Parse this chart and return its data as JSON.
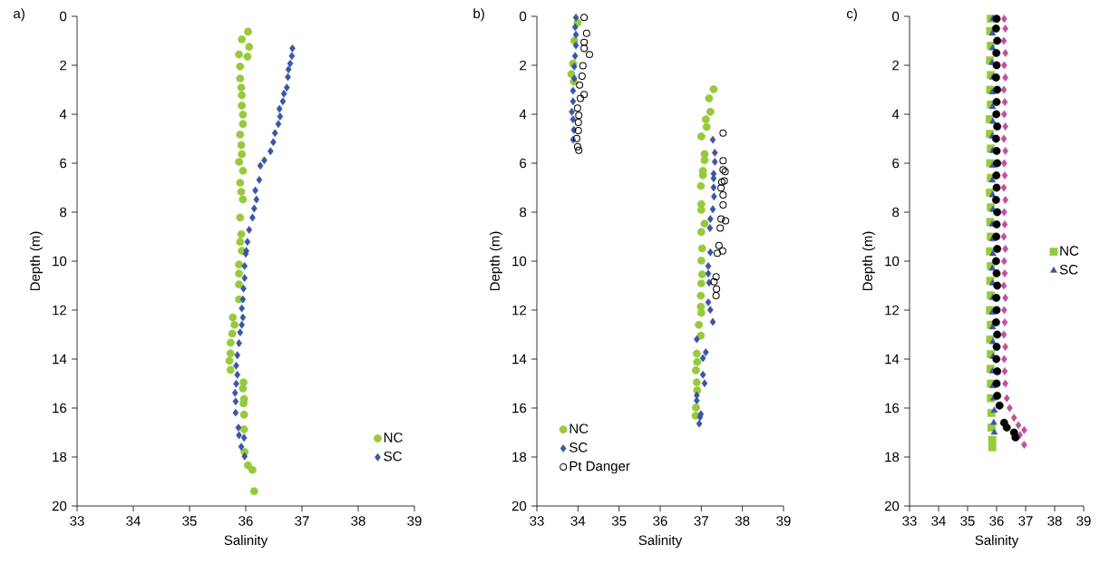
{
  "chart_data": [
    {
      "type": "scatter",
      "title": "a)",
      "xlabel": "Salinity",
      "ylabel": "Depth (m)",
      "xlim": [
        33,
        39
      ],
      "ylim": [
        20,
        0
      ],
      "xticks": [
        33,
        34,
        35,
        36,
        37,
        38,
        39
      ],
      "yticks": [
        0,
        2,
        4,
        6,
        8,
        10,
        12,
        14,
        16,
        18,
        20
      ],
      "legend": "bottom right",
      "grid": false,
      "series": [
        {
          "name": "NC",
          "color": "#97c93d",
          "marker": "circle",
          "x": [
            36.04,
            35.93,
            36.06,
            35.88,
            36.03,
            35.9,
            35.9,
            35.92,
            35.93,
            35.93,
            35.95,
            35.95,
            35.9,
            35.92,
            35.93,
            35.88,
            35.95,
            35.9,
            35.92,
            35.95,
            35.9,
            35.92,
            35.9,
            35.93,
            35.88,
            35.88,
            35.88,
            35.88,
            35.77,
            35.8,
            35.76,
            35.73,
            35.73,
            35.71,
            35.73,
            35.96,
            35.95,
            35.97,
            35.96,
            35.97,
            35.97,
            35.98,
            36.04,
            36.12,
            36.15
          ],
          "values": [
            0.63,
            0.94,
            1.25,
            1.56,
            1.65,
            2.05,
            2.54,
            2.91,
            3.22,
            3.65,
            4.02,
            4.4,
            4.83,
            5.26,
            5.63,
            5.94,
            6.31,
            6.8,
            7.17,
            7.48,
            8.22,
            8.9,
            9.21,
            9.58,
            10.14,
            10.51,
            10.95,
            11.56,
            12.3,
            12.6,
            12.96,
            13.33,
            13.77,
            14.07,
            14.44,
            14.95,
            15.2,
            15.63,
            15.81,
            16.27,
            16.87,
            17.79,
            18.34,
            18.53,
            19.4
          ]
        },
        {
          "name": "SC",
          "color": "#3c55a5",
          "marker": "diamond",
          "x": [
            36.83,
            36.82,
            36.79,
            36.76,
            36.75,
            36.73,
            36.68,
            36.66,
            36.6,
            36.61,
            36.58,
            36.52,
            36.49,
            36.44,
            36.33,
            36.26,
            36.24,
            36.17,
            36.19,
            36.15,
            36.12,
            36.06,
            36.03,
            36.01,
            36.0,
            35.98,
            35.98,
            35.96,
            35.95,
            35.93,
            35.95,
            35.93,
            35.9,
            35.88,
            35.85,
            35.83,
            35.85,
            35.83,
            35.81,
            35.82,
            35.82,
            35.87,
            35.88,
            35.97,
            35.92,
            35.98
          ],
          "values": [
            1.31,
            1.62,
            1.93,
            2.17,
            2.48,
            2.91,
            3.16,
            3.47,
            3.78,
            4.09,
            4.4,
            4.77,
            5.14,
            5.51,
            5.88,
            6.1,
            6.68,
            7.11,
            7.48,
            7.85,
            8.22,
            8.72,
            9.21,
            9.58,
            9.7,
            10.2,
            10.69,
            11.12,
            11.56,
            11.93,
            12.3,
            12.6,
            12.91,
            13.35,
            13.84,
            14.27,
            14.64,
            15.01,
            15.38,
            15.73,
            16.19,
            16.8,
            17.11,
            17.21,
            17.58,
            17.97
          ]
        }
      ]
    },
    {
      "type": "scatter",
      "title": "b)",
      "xlabel": "Salinity",
      "ylabel": "Depth (m)",
      "xlim": [
        33,
        39
      ],
      "ylim": [
        20,
        0
      ],
      "xticks": [
        33,
        34,
        35,
        36,
        37,
        38,
        39
      ],
      "yticks": [
        0,
        2,
        4,
        6,
        8,
        10,
        12,
        14,
        16,
        18,
        20
      ],
      "legend": "bottom left",
      "grid": false,
      "series": [
        {
          "name": "NC",
          "color": "#97c93d",
          "marker": "circle",
          "x": [
            33.99,
            33.91,
            33.88,
            33.84,
            33.9,
            37.3,
            37.19,
            37.22,
            37.11,
            37.13,
            37.0,
            37.08,
            37.08,
            37.04,
            37.04,
            36.99,
            37.0,
            37.0,
            37.08,
            37.0,
            37.02,
            37.0,
            37.02,
            37.0,
            36.99,
            36.99,
            37.0,
            36.94,
            36.99,
            36.89,
            36.9,
            36.87,
            36.89,
            36.9,
            36.87,
            36.86
          ],
          "values": [
            0.26,
            1.0,
            1.93,
            2.36,
            2.67,
            2.98,
            3.35,
            3.9,
            4.21,
            4.52,
            4.91,
            5.63,
            5.88,
            6.31,
            6.49,
            6.93,
            7.67,
            7.91,
            8.47,
            8.81,
            9.48,
            9.98,
            10.54,
            10.91,
            11.41,
            11.86,
            12.11,
            12.6,
            13.04,
            13.78,
            14.12,
            14.46,
            14.95,
            15.28,
            15.98,
            16.31
          ]
        },
        {
          "name": "SC",
          "color": "#3c55a5",
          "marker": "diamond",
          "x": [
            33.95,
            33.93,
            33.95,
            33.95,
            33.93,
            33.91,
            33.91,
            33.88,
            33.88,
            33.85,
            33.88,
            33.9,
            33.88,
            37.28,
            37.33,
            37.33,
            37.3,
            37.3,
            37.3,
            37.31,
            37.28,
            37.22,
            37.21,
            37.22,
            37.17,
            37.17,
            37.19,
            37.17,
            37.22,
            37.28,
            36.89,
            37.11,
            37.04,
            37.04,
            37.08,
            36.89,
            36.89,
            36.99,
            36.97,
            36.95
          ],
          "values": [
            0.05,
            0.44,
            0.75,
            1.19,
            1.62,
            2.05,
            2.54,
            3.04,
            3.47,
            3.9,
            4.21,
            4.64,
            5.04,
            5.04,
            5.57,
            5.94,
            6.43,
            6.62,
            6.99,
            7.36,
            7.88,
            8.28,
            8.65,
            9.64,
            10.2,
            10.51,
            10.88,
            11.68,
            11.99,
            12.48,
            13.19,
            13.72,
            13.96,
            14.64,
            14.99,
            15.48,
            15.69,
            16.25,
            16.37,
            16.64
          ]
        },
        {
          "name": "Pt Danger",
          "color": "#000000",
          "marker": "open circle",
          "x": [
            34.15,
            34.21,
            34.15,
            34.15,
            34.28,
            34.12,
            34.1,
            34.04,
            34.15,
            34.06,
            33.99,
            34.02,
            34.01,
            34.01,
            33.97,
            33.99,
            34.02,
            37.53,
            37.53,
            37.53,
            37.58,
            37.56,
            37.5,
            37.48,
            37.53,
            37.53,
            37.48,
            37.59,
            37.46,
            37.43,
            37.52,
            37.39,
            37.36,
            37.31,
            37.37,
            37.36
          ],
          "values": [
            0.05,
            0.69,
            1.06,
            1.31,
            1.56,
            2.02,
            2.44,
            2.81,
            3.19,
            3.35,
            3.75,
            4.05,
            4.33,
            4.67,
            4.99,
            5.32,
            5.47,
            4.77,
            5.9,
            6.27,
            6.34,
            6.72,
            6.77,
            7.01,
            7.3,
            7.7,
            8.28,
            8.35,
            8.65,
            9.36,
            9.58,
            9.68,
            10.64,
            10.84,
            11.14,
            11.41
          ]
        }
      ]
    },
    {
      "type": "scatter",
      "title": "c)",
      "xlabel": "Salinity",
      "ylabel": "Depth (m)",
      "xlim": [
        33,
        39
      ],
      "ylim": [
        20,
        0
      ],
      "xticks": [
        33,
        34,
        35,
        36,
        37,
        38,
        39
      ],
      "yticks": [
        0,
        2,
        4,
        6,
        8,
        10,
        12,
        14,
        16,
        18,
        20
      ],
      "legend": "right",
      "grid": false,
      "series": [
        {
          "name": "NC",
          "color": "#97c93d",
          "marker": "square",
          "x": [
            35.8,
            35.78,
            35.8,
            35.77,
            35.8,
            35.78,
            35.8,
            35.76,
            35.77,
            35.8,
            35.78,
            35.8,
            35.77,
            35.8,
            35.78,
            35.8,
            35.77,
            35.8,
            35.78,
            35.8,
            35.77,
            35.8,
            35.78,
            35.8,
            35.79,
            35.8,
            35.8,
            35.82,
            35.82,
            35.85,
            35.85
          ],
          "values": [
            0.1,
            0.6,
            1.2,
            1.8,
            2.4,
            3.0,
            3.6,
            4.2,
            4.8,
            5.4,
            6.0,
            6.6,
            7.2,
            7.8,
            8.4,
            9.0,
            9.6,
            10.2,
            10.8,
            11.4,
            12.0,
            12.6,
            13.2,
            13.8,
            14.4,
            15.0,
            15.6,
            16.2,
            16.8,
            17.3,
            17.6
          ]
        },
        {
          "name": "SC",
          "color": "#3c55a5",
          "marker": "triangle",
          "x": [
            35.87,
            35.85,
            35.86,
            35.84,
            35.87,
            35.85,
            35.86,
            35.87,
            35.85,
            35.86,
            35.87,
            35.85,
            35.86,
            35.87,
            35.85,
            35.86,
            35.87,
            35.85,
            35.86,
            35.87,
            35.85,
            35.86,
            35.87,
            35.88,
            35.86,
            35.87,
            35.9,
            35.92,
            35.9,
            35.92
          ],
          "values": [
            0.1,
            0.7,
            1.3,
            1.9,
            2.5,
            3.1,
            3.7,
            4.3,
            4.9,
            5.5,
            6.1,
            6.7,
            7.3,
            7.9,
            8.5,
            9.1,
            9.7,
            10.3,
            10.9,
            11.5,
            12.1,
            12.7,
            13.3,
            13.9,
            14.5,
            15.1,
            15.6,
            16.1,
            16.6,
            17.0
          ]
        },
        {
          "color": "#c0509e",
          "marker": "diamond",
          "x": [
            36.26,
            36.3,
            36.25,
            36.3,
            36.26,
            36.3,
            36.25,
            36.28,
            36.26,
            36.3,
            36.25,
            36.3,
            36.26,
            36.28,
            36.25,
            36.3,
            36.26,
            36.28,
            36.25,
            36.3,
            36.26,
            36.28,
            36.25,
            36.3,
            36.26,
            36.28,
            36.25,
            36.3,
            36.26,
            36.28,
            36.3,
            36.35,
            36.45,
            36.6,
            36.75,
            36.95,
            36.8,
            36.95
          ],
          "values": [
            0.1,
            0.5,
            1.0,
            1.5,
            2.0,
            2.5,
            3.0,
            3.5,
            4.0,
            4.5,
            5.0,
            5.5,
            6.0,
            6.5,
            7.0,
            7.5,
            8.0,
            8.5,
            9.0,
            9.5,
            10.0,
            10.5,
            11.0,
            11.5,
            12.0,
            12.5,
            13.0,
            13.5,
            14.0,
            14.5,
            15.0,
            15.6,
            16.0,
            16.4,
            16.7,
            16.9,
            17.1,
            17.5
          ]
        },
        {
          "color": "#000000",
          "marker": "circle",
          "x": [
            36.0,
            35.98,
            36.02,
            35.99,
            36.0,
            35.98,
            36.02,
            36.0,
            35.99,
            36.02,
            35.98,
            36.0,
            36.02,
            35.99,
            36.0,
            35.98,
            36.02,
            36.0,
            35.99,
            36.02,
            35.98,
            36.0,
            36.02,
            35.99,
            36.0,
            35.98,
            36.02,
            36.0,
            35.99,
            36.02,
            36.0,
            36.02,
            36.1,
            36.26,
            36.35,
            36.6,
            36.65
          ],
          "values": [
            0.1,
            0.5,
            1.0,
            1.5,
            2.0,
            2.5,
            3.0,
            3.5,
            4.0,
            4.5,
            5.0,
            5.5,
            6.0,
            6.5,
            7.0,
            7.5,
            8.0,
            8.5,
            9.0,
            9.5,
            10.0,
            10.5,
            11.0,
            11.5,
            12.0,
            12.5,
            13.0,
            13.5,
            14.0,
            14.5,
            15.0,
            15.5,
            15.9,
            16.6,
            16.8,
            17.0,
            17.2
          ]
        }
      ]
    }
  ]
}
